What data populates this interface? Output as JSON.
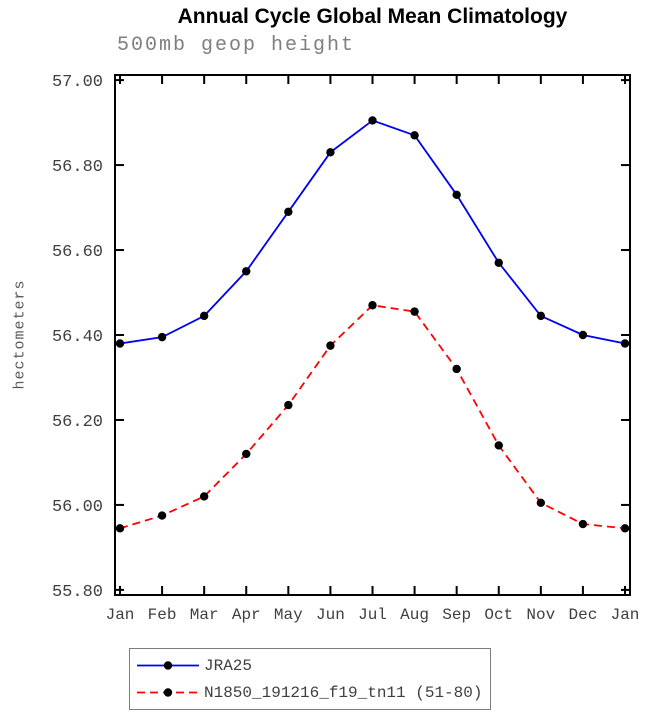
{
  "title": "Annual Cycle Global Mean Climatology",
  "subtitle": "500mb geop height",
  "chart_data": {
    "type": "line",
    "x": [
      "Jan",
      "Feb",
      "Mar",
      "Apr",
      "May",
      "Jun",
      "Jul",
      "Aug",
      "Sep",
      "Oct",
      "Nov",
      "Dec",
      "Jan"
    ],
    "xlabel": "",
    "ylabel": "hectometers",
    "ylim": [
      55.8,
      57.0
    ],
    "ytick_step": 0.2,
    "grid": false,
    "legend_position": "bottom-left",
    "axis_color": "#000000",
    "tick_label_color": "#3f3f3f",
    "series": [
      {
        "name": "JRA25",
        "color": "#0000ee",
        "dash": "solid",
        "marker": "circle",
        "marker_color": "#000000",
        "values": [
          56.38,
          56.395,
          56.445,
          56.55,
          56.69,
          56.83,
          56.905,
          56.87,
          56.73,
          56.57,
          56.445,
          56.4,
          56.38
        ]
      },
      {
        "name": "N1850_191216_f19_tn11 (51-80)",
        "color": "#ff0000",
        "dash": "dashed",
        "marker": "circle",
        "marker_color": "#000000",
        "values": [
          55.945,
          55.975,
          56.02,
          56.12,
          56.235,
          56.375,
          56.47,
          56.455,
          56.32,
          56.14,
          56.005,
          55.955,
          55.945
        ]
      }
    ]
  }
}
